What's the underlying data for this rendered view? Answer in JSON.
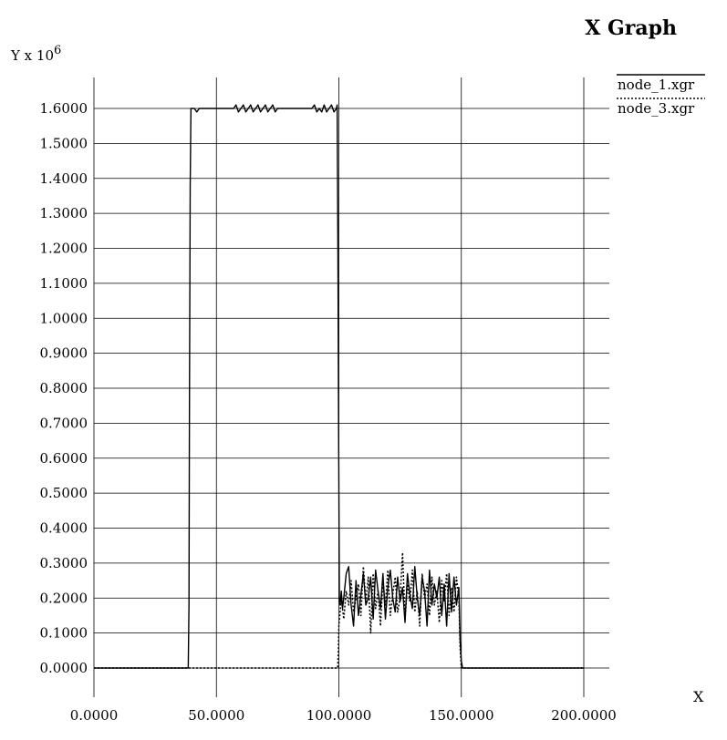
{
  "chart_data": {
    "type": "line",
    "title": "X Graph",
    "xlabel": "X",
    "ylabel": "Y x 10",
    "ylabel_exponent": "6",
    "xlim": [
      0,
      200
    ],
    "ylim": [
      0,
      1.6
    ],
    "grid": true,
    "legend_position": "right",
    "x_ticks": [
      "0.0000",
      "50.0000",
      "100.0000",
      "150.0000",
      "200.0000"
    ],
    "y_ticks": [
      "0.0000",
      "0.1000",
      "0.2000",
      "0.3000",
      "0.4000",
      "0.5000",
      "0.6000",
      "0.7000",
      "0.8000",
      "0.9000",
      "1.0000",
      "1.1000",
      "1.2000",
      "1.3000",
      "1.4000",
      "1.5000",
      "1.6000"
    ],
    "series": [
      {
        "name": "node_1.xgr",
        "style": "solid",
        "x": [
          0,
          38.5,
          38.8,
          39.0,
          39.3,
          39.6,
          40.0,
          41.0,
          42.0,
          43.0,
          44.0,
          45.0,
          50.0,
          55.0,
          57.0,
          58.0,
          59.0,
          60.0,
          61.0,
          62.0,
          63.0,
          64.0,
          65.0,
          66.0,
          67.0,
          68.0,
          69.0,
          70.0,
          71.0,
          72.0,
          73.0,
          74.0,
          75.0,
          76.0,
          77.0,
          78.0,
          80.0,
          85.0,
          89.0,
          90.0,
          91.0,
          92.0,
          93.0,
          94.0,
          95.0,
          96.0,
          97.0,
          98.0,
          99.0,
          99.3,
          99.6,
          99.9,
          100.2,
          100.5,
          101.0,
          101.5,
          102.0,
          103.0,
          104.0,
          105.0,
          106.0,
          107.0,
          108.0,
          109.0,
          110.0,
          111.0,
          112.0,
          113.0,
          114.0,
          115.0,
          116.0,
          117.0,
          118.0,
          119.0,
          120.0,
          121.0,
          122.0,
          123.0,
          124.0,
          125.0,
          126.0,
          127.0,
          128.0,
          129.0,
          130.0,
          131.0,
          132.0,
          133.0,
          134.0,
          135.0,
          136.0,
          137.0,
          138.0,
          139.0,
          140.0,
          141.0,
          142.0,
          143.0,
          144.0,
          145.0,
          146.0,
          147.0,
          148.0,
          149.0,
          149.5,
          150.0,
          150.5,
          151.0,
          160.0,
          200.0
        ],
        "y": [
          0,
          0.0,
          0.18,
          0.78,
          1.38,
          1.6,
          1.6,
          1.6,
          1.59,
          1.6,
          1.6,
          1.6,
          1.6,
          1.6,
          1.6,
          1.61,
          1.59,
          1.6,
          1.61,
          1.59,
          1.6,
          1.61,
          1.59,
          1.6,
          1.61,
          1.59,
          1.6,
          1.61,
          1.59,
          1.6,
          1.61,
          1.59,
          1.6,
          1.6,
          1.6,
          1.6,
          1.6,
          1.6,
          1.6,
          1.61,
          1.59,
          1.6,
          1.59,
          1.61,
          1.59,
          1.6,
          1.61,
          1.59,
          1.6,
          1.61,
          1.2,
          0.68,
          0.2,
          0.18,
          0.22,
          0.17,
          0.2,
          0.27,
          0.29,
          0.18,
          0.12,
          0.25,
          0.15,
          0.21,
          0.27,
          0.18,
          0.2,
          0.26,
          0.14,
          0.28,
          0.22,
          0.17,
          0.27,
          0.14,
          0.23,
          0.28,
          0.2,
          0.16,
          0.26,
          0.19,
          0.23,
          0.13,
          0.27,
          0.21,
          0.17,
          0.29,
          0.2,
          0.15,
          0.26,
          0.22,
          0.12,
          0.28,
          0.18,
          0.24,
          0.2,
          0.26,
          0.15,
          0.24,
          0.12,
          0.27,
          0.16,
          0.26,
          0.18,
          0.23,
          0.08,
          0.02,
          0.0,
          0.0,
          0.0,
          0.0
        ]
      },
      {
        "name": "node_3.xgr",
        "style": "dotted",
        "x": [
          0,
          99.5,
          99.8,
          100.0,
          100.5,
          101.0,
          102.0,
          103.0,
          104.0,
          105.0,
          106.0,
          107.0,
          108.0,
          109.0,
          110.0,
          111.0,
          112.0,
          113.0,
          114.0,
          115.0,
          116.0,
          117.0,
          118.0,
          119.0,
          120.0,
          121.0,
          122.0,
          123.0,
          124.0,
          125.0,
          126.0,
          127.0,
          128.0,
          129.0,
          130.0,
          131.0,
          132.0,
          133.0,
          134.0,
          135.0,
          136.0,
          137.0,
          138.0,
          139.0,
          140.0,
          141.0,
          142.0,
          143.0,
          144.0,
          145.0,
          146.0,
          147.0,
          148.0,
          149.0,
          149.5,
          150.0,
          151.0,
          200.0
        ],
        "y": [
          0,
          0.0,
          0.05,
          0.12,
          0.16,
          0.2,
          0.14,
          0.22,
          0.18,
          0.25,
          0.16,
          0.2,
          0.24,
          0.15,
          0.29,
          0.19,
          0.26,
          0.1,
          0.27,
          0.17,
          0.22,
          0.12,
          0.25,
          0.18,
          0.28,
          0.15,
          0.21,
          0.26,
          0.16,
          0.2,
          0.33,
          0.14,
          0.24,
          0.19,
          0.28,
          0.16,
          0.22,
          0.12,
          0.27,
          0.2,
          0.24,
          0.15,
          0.26,
          0.18,
          0.22,
          0.13,
          0.25,
          0.19,
          0.27,
          0.15,
          0.23,
          0.16,
          0.26,
          0.2,
          0.06,
          0.0,
          0.0,
          0.0
        ]
      }
    ]
  }
}
